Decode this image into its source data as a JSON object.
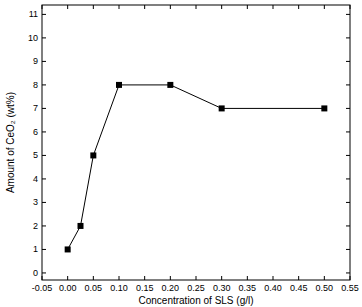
{
  "chart_data": {
    "type": "line",
    "x_label": "Concentration of SLS (g/l)",
    "y_label": "Amount of CeO₂ (wt%)",
    "x": [
      0,
      0.025,
      0.05,
      0.1,
      0.2,
      0.3,
      0.5
    ],
    "values": [
      1,
      2,
      5,
      8,
      8,
      7,
      7
    ],
    "color": "#000000",
    "marker": "square",
    "line_style": "solid",
    "grid": false,
    "xlim": [
      -0.05,
      0.55
    ],
    "xticks": [
      {
        "value": -0.05,
        "label": "-0.05"
      },
      {
        "value": 0,
        "label": "0.00"
      },
      {
        "value": 0.05,
        "label": "0.05"
      },
      {
        "value": 0.1,
        "label": "0.10"
      },
      {
        "value": 0.15,
        "label": "0.15"
      },
      {
        "value": 0.2,
        "label": "0.20"
      },
      {
        "value": 0.25,
        "label": "0.25"
      },
      {
        "value": 0.3,
        "label": "0.30"
      },
      {
        "value": 0.35,
        "label": "0.35"
      },
      {
        "value": 0.4,
        "label": "0.40"
      },
      {
        "value": 0.45,
        "label": "0.45"
      },
      {
        "value": 0.5,
        "label": "0.50"
      },
      {
        "value": 0.55,
        "label": "0.55"
      }
    ],
    "ylim": [
      -0.3,
      11.4
    ],
    "yticks": [
      0,
      1,
      2,
      3,
      4,
      5,
      6,
      7,
      8,
      9,
      10,
      11
    ]
  }
}
